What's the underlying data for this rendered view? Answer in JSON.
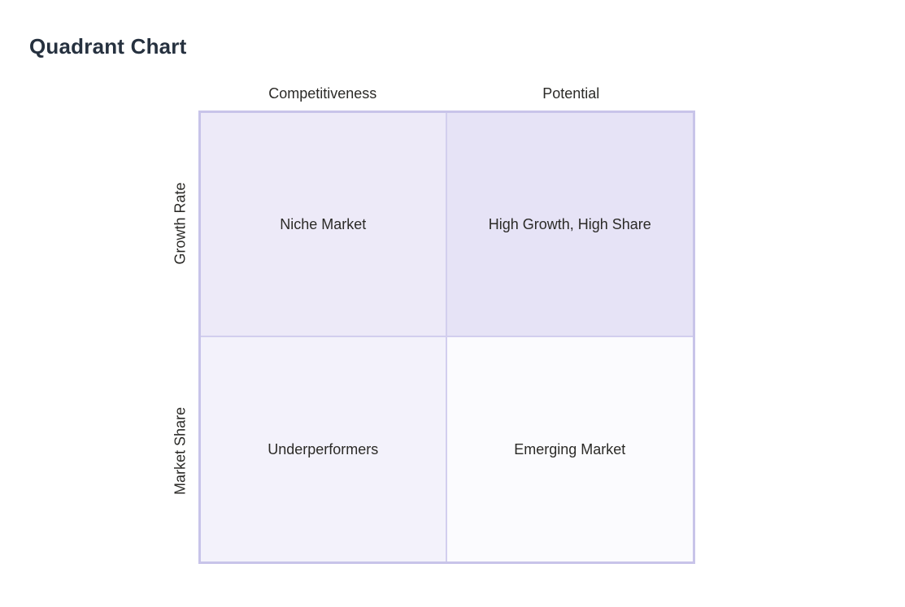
{
  "page": {
    "title": "Quadrant Chart"
  },
  "chart_data": {
    "type": "quadrant",
    "title": "Quadrant Chart",
    "x_axis_labels": [
      "Competitiveness",
      "Potential"
    ],
    "y_axis_labels": [
      "Growth Rate",
      "Market Share"
    ],
    "quadrants": [
      {
        "position": "top-left",
        "label": "Niche Market",
        "fill": "#edeaf8"
      },
      {
        "position": "top-right",
        "label": "High Growth, High Share",
        "fill": "#e6e3f6"
      },
      {
        "position": "bottom-left",
        "label": "Underperformers",
        "fill": "#f3f2fb"
      },
      {
        "position": "bottom-right",
        "label": "Emerging Market",
        "fill": "#fbfbfe"
      }
    ],
    "colors": {
      "outer_border": "#c8c4e9",
      "divider": "#d2ceee",
      "label_text": "#2b2a27",
      "title_text": "#26313f",
      "background": "#ffffff"
    },
    "layout": {
      "grid": "2x2",
      "legend": "none",
      "x_axis_position": "top",
      "y_axis_position": "left"
    }
  }
}
